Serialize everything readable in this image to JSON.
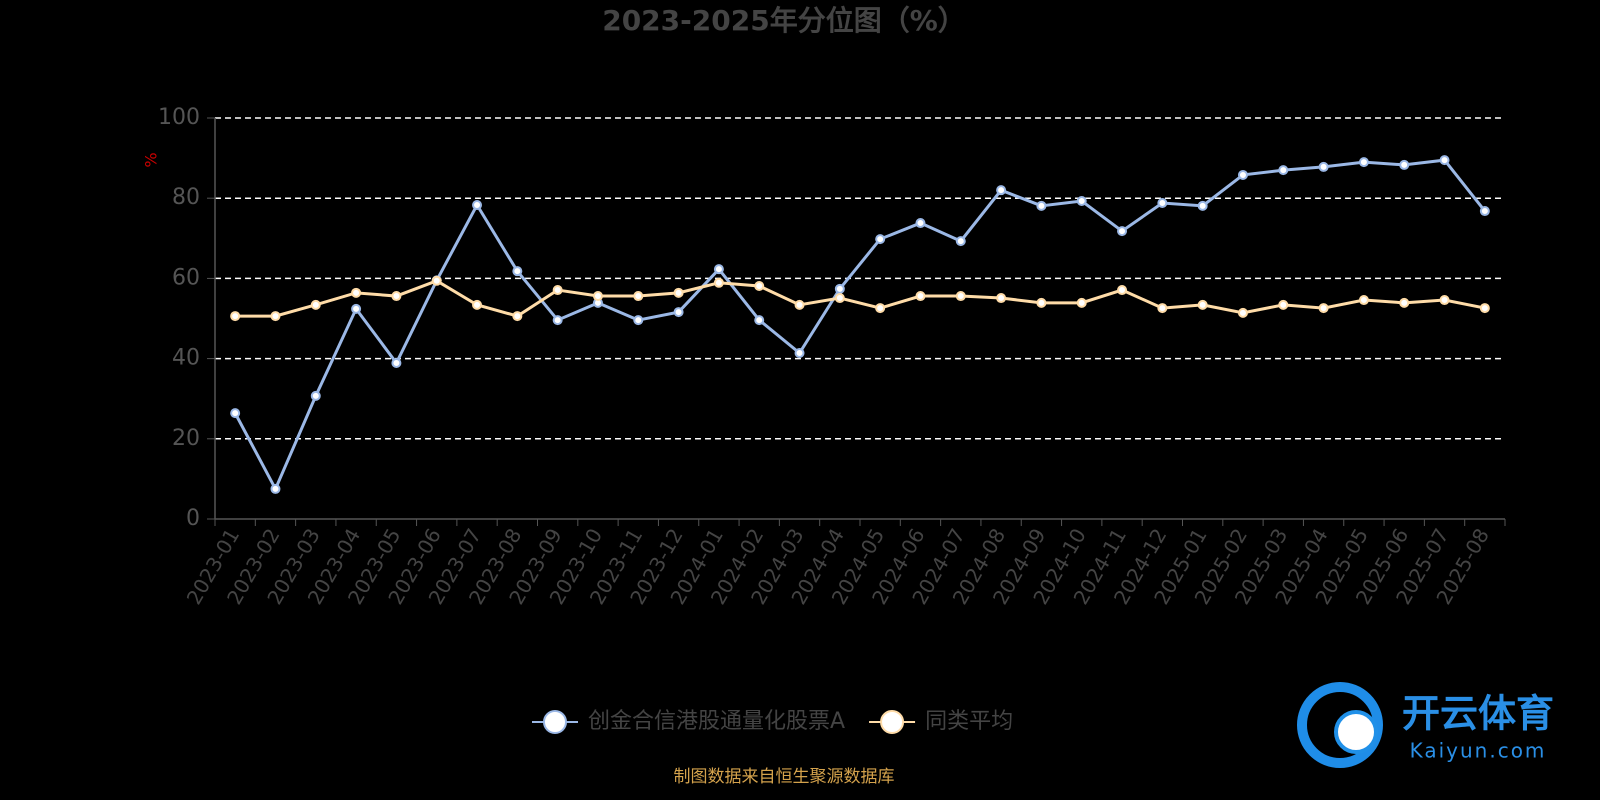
{
  "chart_data": {
    "type": "line",
    "title": "2023-2025年分位图（%）",
    "y_label": "%",
    "categories": [
      "2023-01",
      "2023-02",
      "2023-03",
      "2023-04",
      "2023-05",
      "2023-06",
      "2023-07",
      "2023-08",
      "2023-09",
      "2023-10",
      "2023-11",
      "2023-12",
      "2024-01",
      "2024-02",
      "2024-03",
      "2024-04",
      "2024-05",
      "2024-06",
      "2024-07",
      "2024-08",
      "2024-09",
      "2024-10",
      "2024-11",
      "2024-12",
      "2025-01",
      "2025-02",
      "2025-03",
      "2025-04",
      "2025-05",
      "2025-06",
      "2025-07",
      "2025-08"
    ],
    "series": [
      {
        "name": "创金合信港股通量化股票A",
        "color": "#9bb8e6",
        "values": [
          26.4,
          7.5,
          30.7,
          52.4,
          38.9,
          59.5,
          78.3,
          61.8,
          49.6,
          53.9,
          49.6,
          51.6,
          62.3,
          49.6,
          41.4,
          57.4,
          69.8,
          73.8,
          69.3,
          82.0,
          78.1,
          79.3,
          71.8,
          78.8,
          78.1,
          85.8,
          87.0,
          87.8,
          89.0,
          88.3,
          89.5,
          76.8
        ]
      },
      {
        "name": "同类平均",
        "color": "#ffdca8",
        "values": [
          50.6,
          50.6,
          53.4,
          56.4,
          55.6,
          59.4,
          53.4,
          50.6,
          57.1,
          55.6,
          55.6,
          56.4,
          58.9,
          58.1,
          53.4,
          55.1,
          52.6,
          55.6,
          55.6,
          55.1,
          53.9,
          53.9,
          57.1,
          52.6,
          53.4,
          51.4,
          53.4,
          52.6,
          54.6,
          53.9,
          54.6,
          52.6
        ]
      }
    ],
    "ylim": [
      0,
      100
    ],
    "yticks": [
      0,
      20,
      40,
      60,
      80,
      100
    ],
    "grid": true,
    "legend": "bottom",
    "source": "制图数据来自恒生聚源数据库"
  },
  "watermark": {
    "brand": "开云体育",
    "site": "Kaiyun.com"
  }
}
